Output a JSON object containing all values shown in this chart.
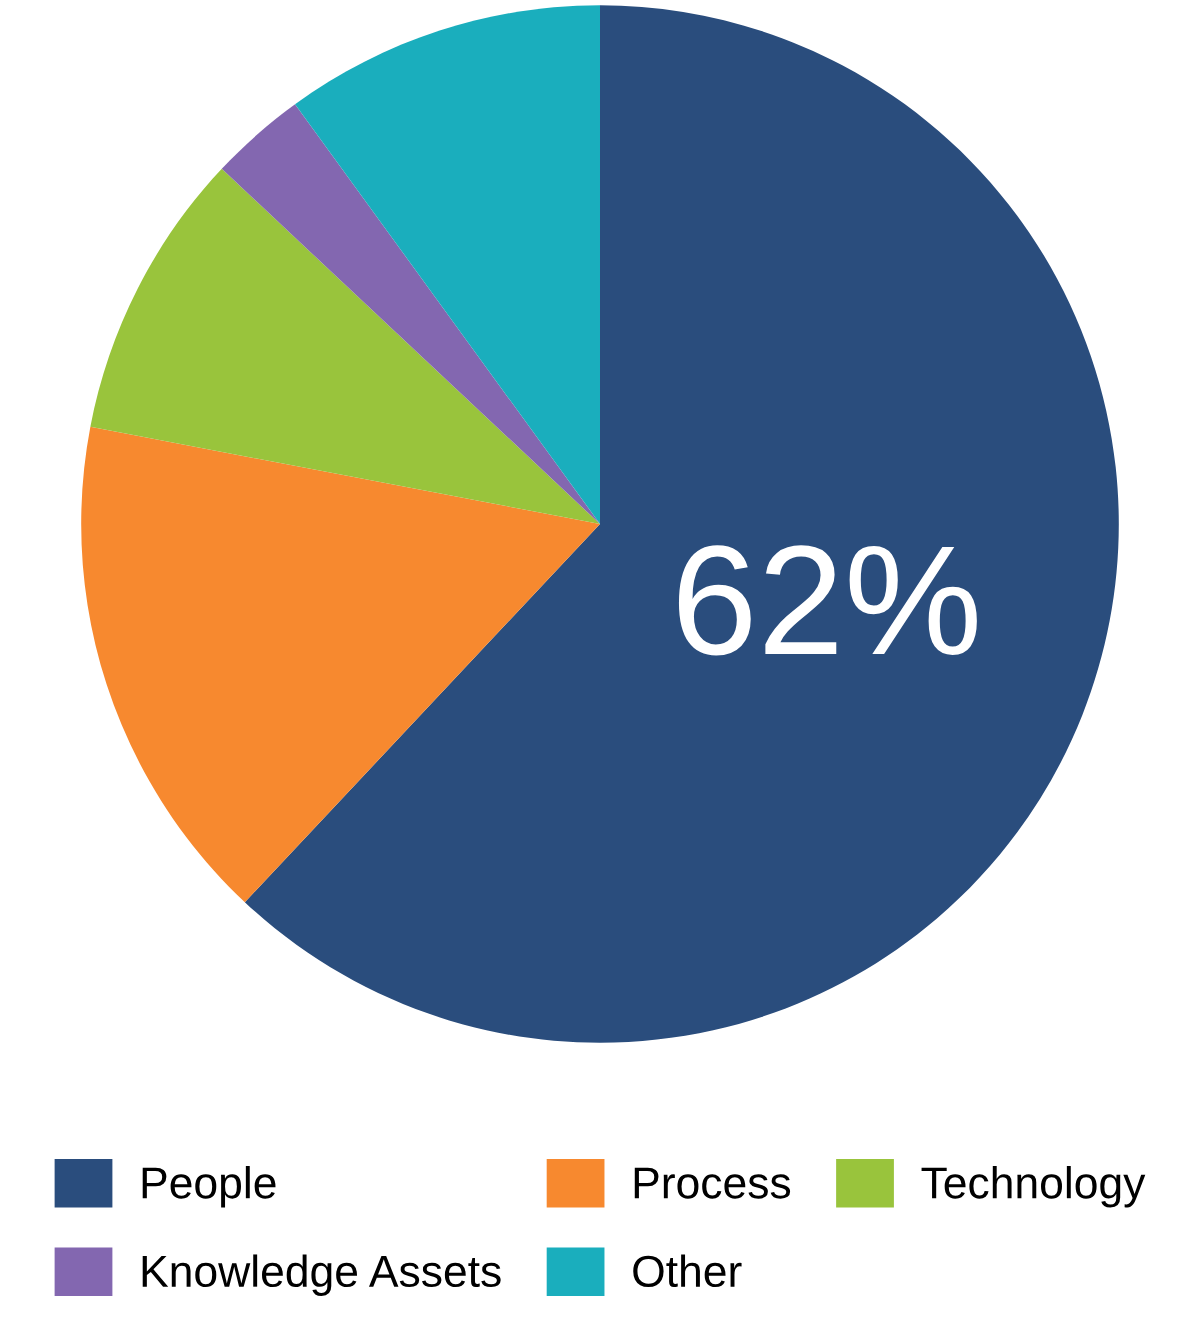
{
  "chart_data": {
    "type": "pie",
    "categories": [
      "People",
      "Process",
      "Technology",
      "Knowledge Assets",
      "Other"
    ],
    "values": [
      62,
      16,
      9,
      3,
      10
    ],
    "colors": [
      "#2a4d7d",
      "#f7892f",
      "#99c43c",
      "#8367b0",
      "#1aaebd"
    ],
    "value_labels": [
      "62%",
      null,
      null,
      null,
      null
    ],
    "legend": "bottom"
  }
}
